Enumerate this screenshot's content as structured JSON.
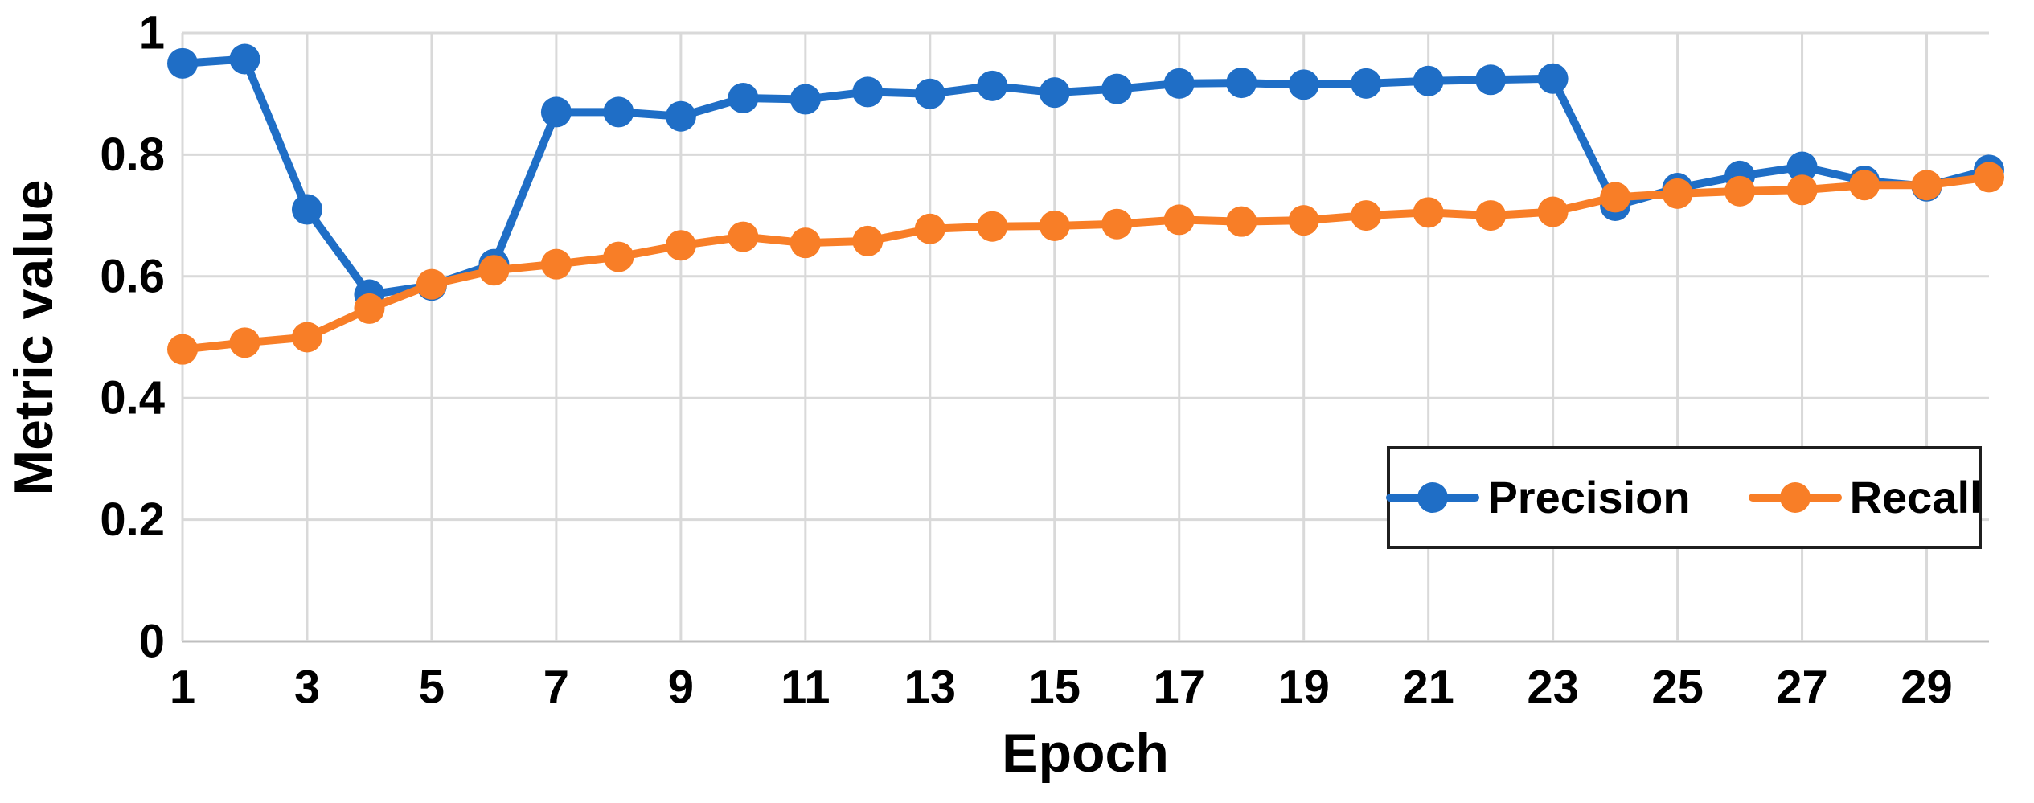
{
  "chart_data": {
    "type": "line",
    "title": "",
    "xlabel": "Epoch",
    "ylabel": "Metric value",
    "xlim": [
      1,
      30
    ],
    "ylim": [
      0,
      1
    ],
    "grid": true,
    "legend_position": "inside-right",
    "x": [
      1,
      2,
      3,
      4,
      5,
      6,
      7,
      8,
      9,
      10,
      11,
      12,
      13,
      14,
      15,
      16,
      17,
      18,
      19,
      20,
      21,
      22,
      23,
      24,
      25,
      26,
      27,
      28,
      29,
      30
    ],
    "x_tick_values": [
      1,
      3,
      5,
      7,
      9,
      11,
      13,
      15,
      17,
      19,
      21,
      23,
      25,
      27,
      29
    ],
    "y_tick_values": [
      0,
      0.2,
      0.4,
      0.6,
      0.8,
      1
    ],
    "y_tick_labels": [
      "0",
      "0.2",
      "0.4",
      "0.6",
      "0.8",
      "1"
    ],
    "series": [
      {
        "name": "Precision",
        "color": "#1f6ec6",
        "values": [
          0.95,
          0.957,
          0.71,
          0.57,
          0.585,
          0.62,
          0.87,
          0.87,
          0.863,
          0.893,
          0.891,
          0.903,
          0.9,
          0.913,
          0.902,
          0.908,
          0.917,
          0.918,
          0.915,
          0.917,
          0.921,
          0.923,
          0.925,
          0.716,
          0.745,
          0.765,
          0.78,
          0.757,
          0.748,
          0.775
        ]
      },
      {
        "name": "Recall",
        "color": "#f87e27",
        "values": [
          0.48,
          0.491,
          0.5,
          0.547,
          0.587,
          0.61,
          0.62,
          0.632,
          0.651,
          0.665,
          0.655,
          0.658,
          0.678,
          0.682,
          0.683,
          0.686,
          0.693,
          0.69,
          0.692,
          0.7,
          0.705,
          0.7,
          0.706,
          0.73,
          0.736,
          0.74,
          0.742,
          0.75,
          0.75,
          0.763
        ]
      }
    ],
    "colors": {
      "gridline": "#d9d9d9",
      "axis_line": "#bfbfbf",
      "text": "#000000",
      "legend_border": "#1f1f1f",
      "background": "#ffffff"
    }
  }
}
